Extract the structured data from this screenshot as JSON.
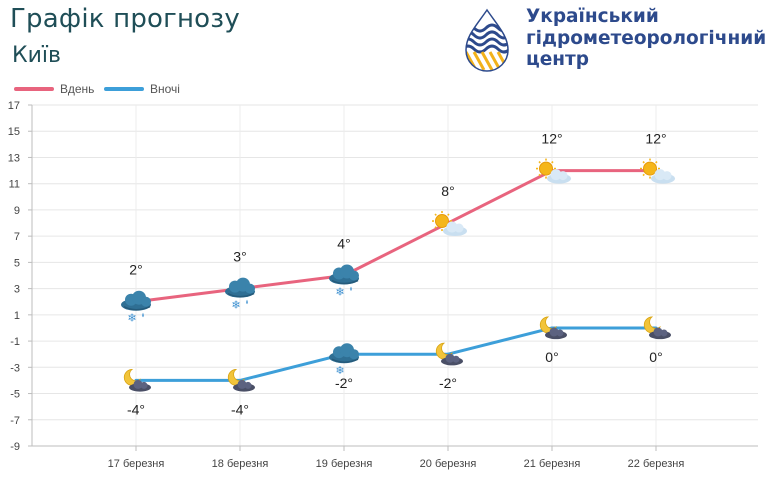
{
  "header": {
    "title": "Графік прогнозу",
    "city": "Київ"
  },
  "logo": {
    "lines": [
      "Український",
      "гідрометеорологічний",
      "центр"
    ],
    "colors": {
      "text": "#2d4a8c",
      "accent": "#f2b21b"
    }
  },
  "legend": [
    {
      "label": "Вдень",
      "color": "#e8647e"
    },
    {
      "label": "Вночі",
      "color": "#3d9fd9"
    }
  ],
  "chart_data": {
    "type": "line",
    "title": "Графік прогнозу",
    "subtitle": "Київ",
    "xlabel": "",
    "ylabel": "",
    "categories": [
      "17 березня",
      "18 березня",
      "19 березня",
      "20 березня",
      "21 березня",
      "22 березня"
    ],
    "ylim": [
      -9,
      17
    ],
    "yticks": [
      17,
      15,
      13,
      11,
      9,
      7,
      5,
      3,
      1,
      -1,
      -3,
      -5,
      -7,
      -9
    ],
    "grid": true,
    "legend_position": "top-left",
    "series": [
      {
        "name": "Вдень",
        "color": "#e8647e",
        "values": [
          2,
          3,
          4,
          8,
          12,
          12
        ],
        "labels": [
          "2°",
          "3°",
          "4°",
          "8°",
          "12°",
          "12°"
        ],
        "icons": [
          "rain-snow-icon",
          "rain-snow-icon",
          "rain-snow-icon",
          "sun-cloud-icon",
          "sun-cloud-icon",
          "sun-cloud-icon"
        ]
      },
      {
        "name": "Вночі",
        "color": "#3d9fd9",
        "values": [
          -4,
          -4,
          -2,
          -2,
          0,
          0
        ],
        "labels": [
          "-4°",
          "-4°",
          "-2°",
          "-2°",
          "0°",
          "0°"
        ],
        "icons": [
          "moon-cloud-icon",
          "moon-cloud-icon",
          "snow-cloud-icon",
          "moon-cloud-icon",
          "moon-cloud-icon",
          "moon-cloud-icon"
        ]
      }
    ]
  }
}
